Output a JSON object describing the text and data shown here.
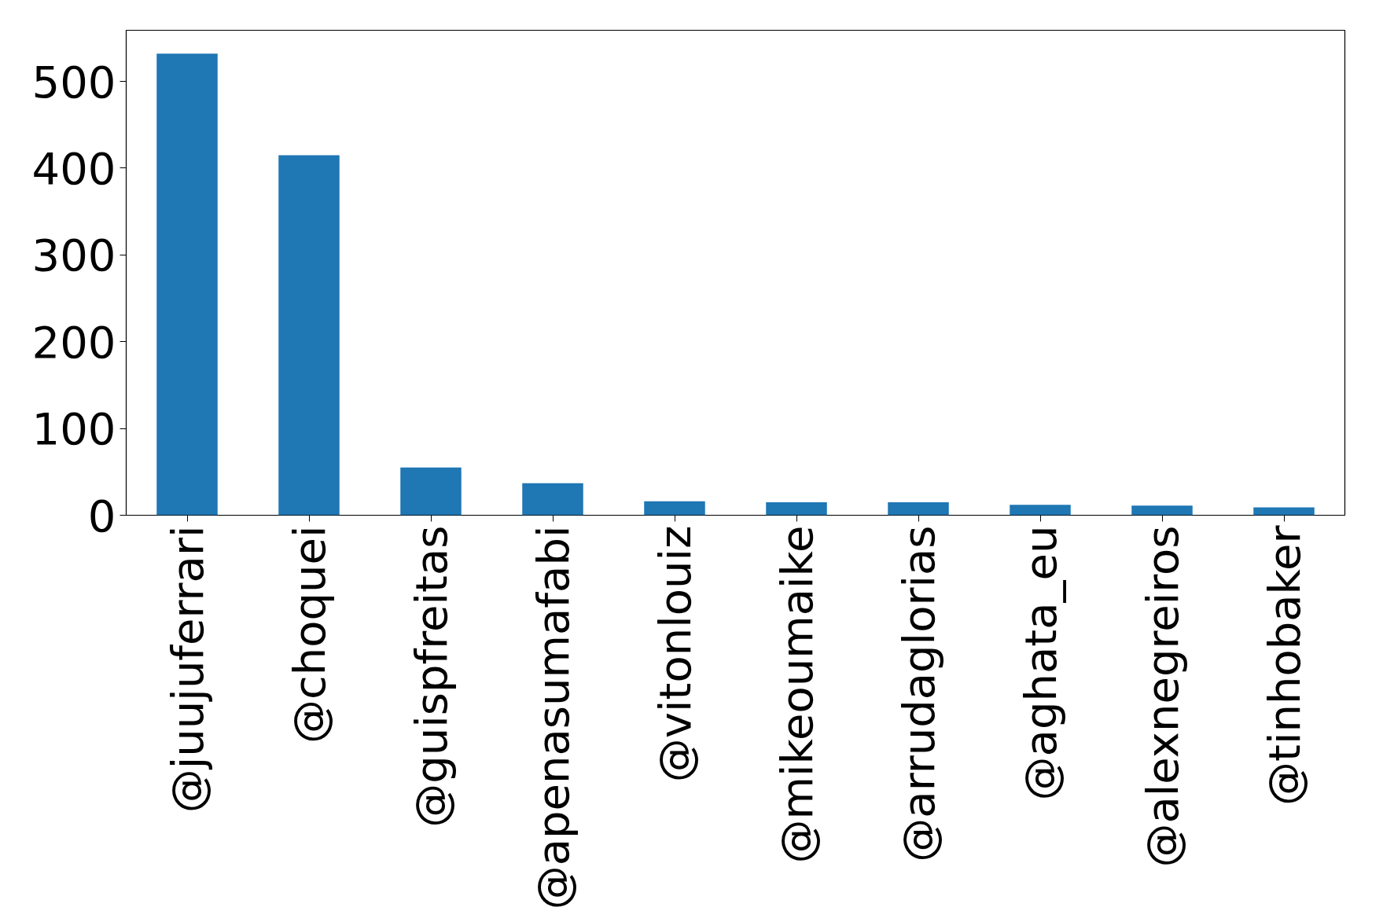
{
  "chart_data": {
    "type": "bar",
    "categories": [
      "@juujuferrari",
      "@choquei",
      "@guispfreitas",
      "@apenasumafabi",
      "@vitonlouiz",
      "@mikeoumaike",
      "@arrudaglorias",
      "@aghata_eu",
      "@alexnegreiros",
      "@tinhobaker"
    ],
    "values": [
      532,
      415,
      55,
      37,
      16,
      15,
      15,
      12,
      11,
      9
    ],
    "color": "#1f77b4",
    "ylim": [
      0,
      559
    ],
    "yticks": [
      0,
      100,
      200,
      300,
      400,
      500
    ],
    "grid": false
  }
}
